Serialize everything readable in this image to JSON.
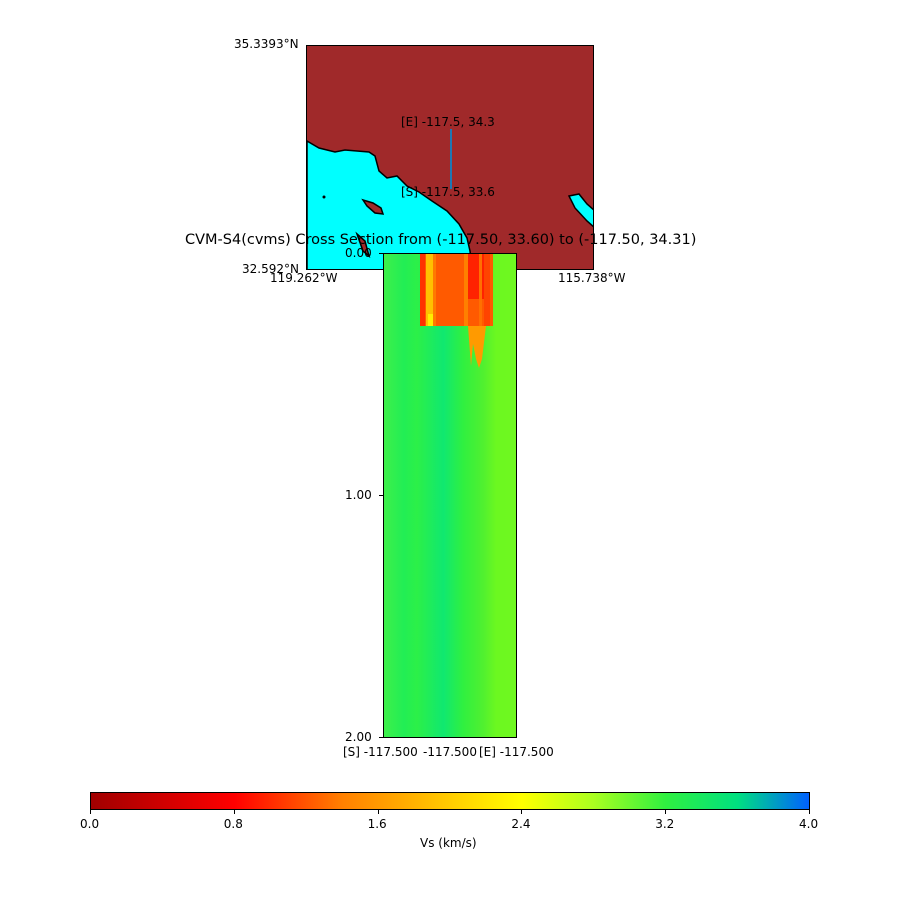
{
  "chart_data": [
    {
      "type": "map",
      "lat_labels": [
        "35.3393°N",
        "32.592°N"
      ],
      "lon_labels": [
        "119.262°W",
        "115.738°W"
      ],
      "colors": {
        "land": "#a0292a",
        "ocean": "#00ffff",
        "path": "#1f77b4"
      },
      "annotations": [
        {
          "label": "[E] -117.5, 34.3",
          "lon": -117.5,
          "lat": 34.3
        },
        {
          "label": "[S] -117.5, 33.6",
          "lon": -117.5,
          "lat": 33.6
        }
      ]
    },
    {
      "type": "heatmap",
      "title": "CVM-S4(cvms) Cross Section from (-117.50, 33.60) to (-117.50, 34.31)",
      "yticks": [
        "0.00",
        "1.00",
        "2.00"
      ],
      "ylim": [
        0,
        2
      ],
      "yaxis_inverted": true,
      "xtick_labels": [
        "[S] -117.500",
        "-117.500",
        "[E] -117.500"
      ],
      "colorbar": {
        "label": "Vs (km/s)",
        "ticks": [
          "0.0",
          "0.8",
          "1.6",
          "2.4",
          "3.2",
          "4.0"
        ],
        "range": [
          0,
          4.0
        ],
        "colors": [
          "#a00000",
          "#ff0000",
          "#ff8000",
          "#ffff00",
          "#30f040",
          "#00e080",
          "#0060ff"
        ]
      }
    }
  ]
}
